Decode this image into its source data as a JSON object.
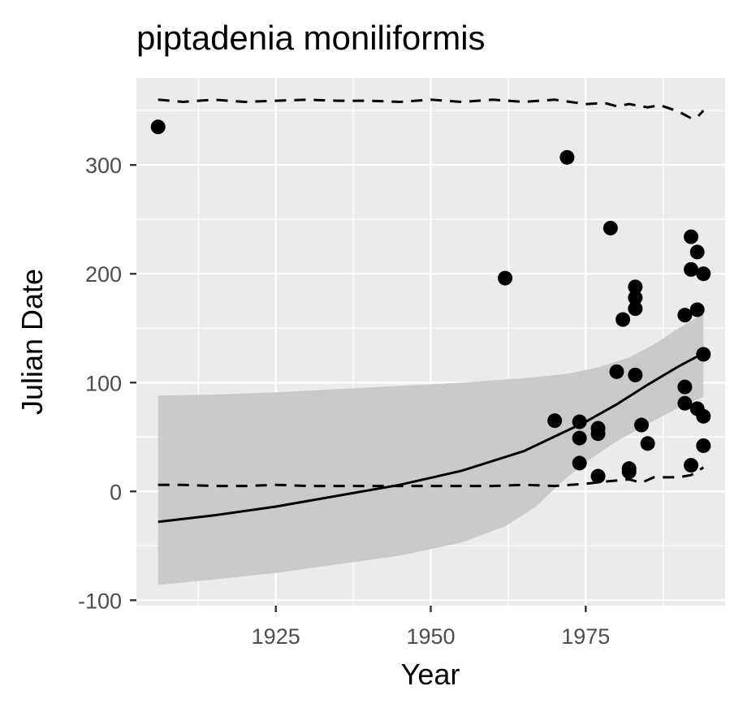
{
  "chart_data": {
    "type": "scatter",
    "title": "piptadenia moniliformis",
    "xlabel": "Year",
    "ylabel": "Julian Date",
    "xlim": [
      1902.5,
      1997.5
    ],
    "ylim": [
      -105,
      380
    ],
    "x_ticks": [
      1925,
      1950,
      1975
    ],
    "x_tick_labels": [
      "1925",
      "1950",
      "1975"
    ],
    "y_ticks": [
      -100,
      0,
      100,
      200,
      300
    ],
    "y_tick_labels": [
      "-100",
      "0",
      "100",
      "200",
      "300"
    ],
    "grid": true,
    "legend": "none",
    "colors": {
      "panel": "#ebebeb",
      "grid": "#ffffff",
      "points": "#000000",
      "ribbon": "#c8c8c8",
      "line": "#000000"
    },
    "points": [
      {
        "x": 1906,
        "y": 335
      },
      {
        "x": 1962,
        "y": 196
      },
      {
        "x": 1970,
        "y": 65
      },
      {
        "x": 1972,
        "y": 307
      },
      {
        "x": 1974,
        "y": 64
      },
      {
        "x": 1974,
        "y": 49
      },
      {
        "x": 1974,
        "y": 26
      },
      {
        "x": 1977,
        "y": 58
      },
      {
        "x": 1977,
        "y": 53
      },
      {
        "x": 1977,
        "y": 14
      },
      {
        "x": 1979,
        "y": 242
      },
      {
        "x": 1980,
        "y": 110
      },
      {
        "x": 1981,
        "y": 158
      },
      {
        "x": 1982,
        "y": 21
      },
      {
        "x": 1982,
        "y": 18
      },
      {
        "x": 1983,
        "y": 188
      },
      {
        "x": 1983,
        "y": 178
      },
      {
        "x": 1983,
        "y": 168
      },
      {
        "x": 1983,
        "y": 107
      },
      {
        "x": 1984,
        "y": 61
      },
      {
        "x": 1985,
        "y": 44
      },
      {
        "x": 1991,
        "y": 162
      },
      {
        "x": 1991,
        "y": 96
      },
      {
        "x": 1991,
        "y": 81
      },
      {
        "x": 1992,
        "y": 234
      },
      {
        "x": 1992,
        "y": 204
      },
      {
        "x": 1992,
        "y": 24
      },
      {
        "x": 1993,
        "y": 220
      },
      {
        "x": 1993,
        "y": 167
      },
      {
        "x": 1993,
        "y": 76
      },
      {
        "x": 1994,
        "y": 200
      },
      {
        "x": 1994,
        "y": 126
      },
      {
        "x": 1994,
        "y": 69
      },
      {
        "x": 1994,
        "y": 42
      }
    ],
    "fit_line": [
      {
        "x": 1906,
        "y": -28
      },
      {
        "x": 1915,
        "y": -22
      },
      {
        "x": 1925,
        "y": -14
      },
      {
        "x": 1935,
        "y": -4
      },
      {
        "x": 1945,
        "y": 6
      },
      {
        "x": 1955,
        "y": 19
      },
      {
        "x": 1965,
        "y": 37
      },
      {
        "x": 1975,
        "y": 64
      },
      {
        "x": 1980,
        "y": 80
      },
      {
        "x": 1985,
        "y": 98
      },
      {
        "x": 1990,
        "y": 115
      },
      {
        "x": 1994,
        "y": 127
      }
    ],
    "ribbon_upper": [
      {
        "x": 1906,
        "y": 88
      },
      {
        "x": 1915,
        "y": 89
      },
      {
        "x": 1925,
        "y": 91
      },
      {
        "x": 1935,
        "y": 94
      },
      {
        "x": 1945,
        "y": 97
      },
      {
        "x": 1955,
        "y": 100
      },
      {
        "x": 1965,
        "y": 104
      },
      {
        "x": 1972,
        "y": 108
      },
      {
        "x": 1977,
        "y": 114
      },
      {
        "x": 1982,
        "y": 123
      },
      {
        "x": 1986,
        "y": 135
      },
      {
        "x": 1990,
        "y": 150
      },
      {
        "x": 1994,
        "y": 163
      }
    ],
    "ribbon_lower": [
      {
        "x": 1906,
        "y": -86
      },
      {
        "x": 1915,
        "y": -81
      },
      {
        "x": 1925,
        "y": -75
      },
      {
        "x": 1935,
        "y": -67
      },
      {
        "x": 1945,
        "y": -59
      },
      {
        "x": 1955,
        "y": -47
      },
      {
        "x": 1962,
        "y": -32
      },
      {
        "x": 1967,
        "y": -14
      },
      {
        "x": 1971,
        "y": 8
      },
      {
        "x": 1975,
        "y": 27
      },
      {
        "x": 1980,
        "y": 46
      },
      {
        "x": 1985,
        "y": 62
      },
      {
        "x": 1990,
        "y": 77
      },
      {
        "x": 1994,
        "y": 87
      }
    ],
    "upper_dashed": [
      {
        "x": 1906,
        "y": 360
      },
      {
        "x": 1910,
        "y": 358
      },
      {
        "x": 1915,
        "y": 360
      },
      {
        "x": 1920,
        "y": 358
      },
      {
        "x": 1925,
        "y": 359
      },
      {
        "x": 1930,
        "y": 360
      },
      {
        "x": 1935,
        "y": 359
      },
      {
        "x": 1940,
        "y": 359
      },
      {
        "x": 1945,
        "y": 358
      },
      {
        "x": 1950,
        "y": 360
      },
      {
        "x": 1955,
        "y": 358
      },
      {
        "x": 1960,
        "y": 360
      },
      {
        "x": 1965,
        "y": 358
      },
      {
        "x": 1970,
        "y": 360
      },
      {
        "x": 1975,
        "y": 356
      },
      {
        "x": 1978,
        "y": 357
      },
      {
        "x": 1980,
        "y": 354
      },
      {
        "x": 1982,
        "y": 356
      },
      {
        "x": 1985,
        "y": 353
      },
      {
        "x": 1987,
        "y": 355
      },
      {
        "x": 1990,
        "y": 349
      },
      {
        "x": 1992,
        "y": 343
      },
      {
        "x": 1993,
        "y": 344
      },
      {
        "x": 1994,
        "y": 350
      }
    ],
    "lower_dashed": [
      {
        "x": 1906,
        "y": 6
      },
      {
        "x": 1910,
        "y": 6
      },
      {
        "x": 1915,
        "y": 5
      },
      {
        "x": 1920,
        "y": 5
      },
      {
        "x": 1925,
        "y": 6
      },
      {
        "x": 1930,
        "y": 5
      },
      {
        "x": 1935,
        "y": 5
      },
      {
        "x": 1940,
        "y": 5
      },
      {
        "x": 1945,
        "y": 5
      },
      {
        "x": 1950,
        "y": 5
      },
      {
        "x": 1955,
        "y": 5
      },
      {
        "x": 1960,
        "y": 5
      },
      {
        "x": 1965,
        "y": 6
      },
      {
        "x": 1970,
        "y": 5
      },
      {
        "x": 1975,
        "y": 7
      },
      {
        "x": 1978,
        "y": 9
      },
      {
        "x": 1980,
        "y": 10
      },
      {
        "x": 1982,
        "y": 11
      },
      {
        "x": 1984,
        "y": 8
      },
      {
        "x": 1986,
        "y": 13
      },
      {
        "x": 1988,
        "y": 13
      },
      {
        "x": 1990,
        "y": 13
      },
      {
        "x": 1992,
        "y": 15
      },
      {
        "x": 1994,
        "y": 22
      }
    ]
  }
}
